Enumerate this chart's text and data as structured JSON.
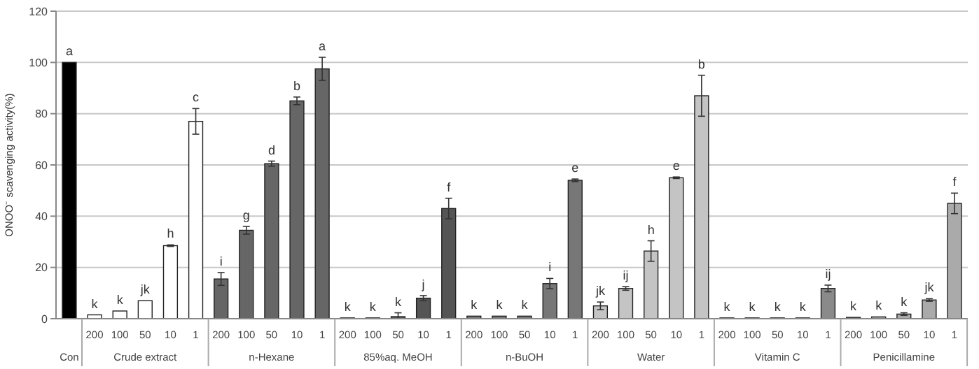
{
  "chart_data": {
    "type": "bar",
    "ylabel": "ONOO⁻ scavenging activity(%)",
    "categories": [
      null,
      "200",
      "100",
      "50",
      "10",
      "1",
      "200",
      "100",
      "50",
      "10",
      "1",
      "200",
      "100",
      "50",
      "10",
      "1",
      "200",
      "100",
      "50",
      "10",
      "1",
      "200",
      "100",
      "50",
      "10",
      "1",
      "200",
      "100",
      "50",
      "10",
      "1",
      "200",
      "100",
      "50",
      "10",
      "1"
    ],
    "values": [
      100,
      1.5,
      3,
      7,
      28.5,
      77,
      15.5,
      34.5,
      60.5,
      85,
      97.5,
      0.3,
      0.3,
      0.8,
      8,
      43,
      1,
      1,
      1,
      13.7,
      54,
      5,
      11.8,
      26.4,
      55,
      87,
      0.3,
      0.3,
      0.3,
      0.3,
      11.8,
      0.5,
      0.7,
      1.8,
      7.3,
      45
    ],
    "errors": [
      null,
      null,
      null,
      null,
      0.3,
      5,
      2.5,
      1.5,
      1,
      1.5,
      4.5,
      null,
      null,
      [
        0.8,
        1.5
      ],
      1,
      4,
      null,
      null,
      null,
      2,
      0.5,
      1.5,
      0.7,
      4,
      0.3,
      8,
      null,
      null,
      null,
      null,
      1.3,
      null,
      null,
      0.5,
      0.5,
      4
    ],
    "value_labels": [
      "a",
      "k",
      "k",
      "jk",
      "h",
      "c",
      "i",
      "g",
      "d",
      "b",
      "a",
      "k",
      "k",
      "k",
      "j",
      "f",
      "k",
      "k",
      "k",
      "i",
      "e",
      "jk",
      "ij",
      "h",
      "e",
      "b",
      "k",
      "k",
      "k",
      "k",
      "ij",
      "k",
      "k",
      "k",
      "jk",
      "f"
    ],
    "colors": [
      "#000000",
      "#ffffff",
      "#ffffff",
      "#ffffff",
      "#ffffff",
      "#ffffff",
      "#666666",
      "#666666",
      "#666666",
      "#666666",
      "#666666",
      "#555555",
      "#555555",
      "#555555",
      "#555555",
      "#555555",
      "#777777",
      "#777777",
      "#777777",
      "#777777",
      "#777777",
      "#c4c4c4",
      "#c4c4c4",
      "#c4c4c4",
      "#c4c4c4",
      "#c4c4c4",
      "#8a8a8a",
      "#8a8a8a",
      "#8a8a8a",
      "#8a8a8a",
      "#8a8a8a",
      "#aaaaaa",
      "#aaaaaa",
      "#aaaaaa",
      "#aaaaaa",
      "#aaaaaa"
    ],
    "annotations": [
      "Con",
      "Crude extract",
      "n-Hexane",
      "85%aq. MeOH",
      "n-BuOH",
      "Water",
      "Vitamin C",
      "Penicillamine"
    ],
    "ylim": [
      0,
      120
    ],
    "yticks": [
      0,
      20,
      40,
      60,
      80,
      100,
      120
    ],
    "grid": "y"
  }
}
